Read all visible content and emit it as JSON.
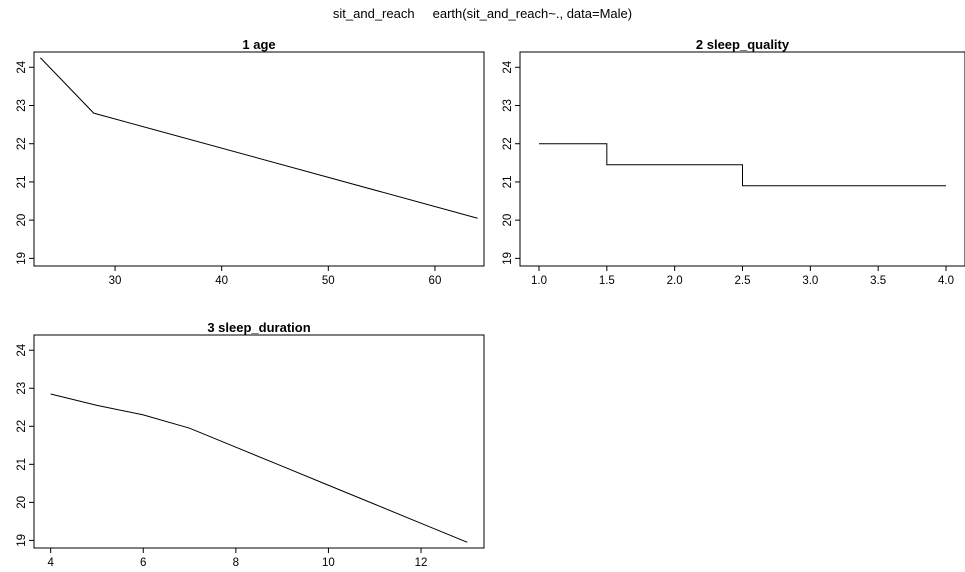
{
  "main_title": "sit_and_reach     earth(sit_and_reach~., data=Male)",
  "chart_data": [
    {
      "type": "line",
      "title": "1  age",
      "xlabel": "",
      "ylabel": "",
      "xlim": [
        22.4,
        64.6
      ],
      "ylim": [
        18.8,
        24.4
      ],
      "x_ticks": [
        30,
        40,
        50,
        60
      ],
      "x_tick_labels": [
        "30",
        "40",
        "50",
        "60"
      ],
      "y_ticks": [
        19,
        20,
        21,
        22,
        23,
        24
      ],
      "y_tick_labels": [
        "19",
        "20",
        "21",
        "22",
        "23",
        "24"
      ],
      "grid": false,
      "series": [
        {
          "x": [
            23,
            28,
            64
          ],
          "y": [
            24.25,
            22.8,
            20.05
          ]
        }
      ]
    },
    {
      "type": "line",
      "title": "2  sleep_quality",
      "xlabel": "",
      "ylabel": "",
      "xlim": [
        0.86,
        4.14
      ],
      "ylim": [
        18.8,
        24.4
      ],
      "x_ticks": [
        1.0,
        1.5,
        2.0,
        2.5,
        3.0,
        3.5,
        4.0
      ],
      "x_tick_labels": [
        "1.0",
        "1.5",
        "2.0",
        "2.5",
        "3.0",
        "3.5",
        "4.0"
      ],
      "y_ticks": [
        19,
        20,
        21,
        22,
        23,
        24
      ],
      "y_tick_labels": [
        "19",
        "20",
        "21",
        "22",
        "23",
        "24"
      ],
      "grid": false,
      "series": [
        {
          "x": [
            1.0,
            1.5,
            1.5,
            2.5,
            2.5,
            4.0
          ],
          "y": [
            22.0,
            22.0,
            21.45,
            21.45,
            20.9,
            20.9
          ]
        }
      ]
    },
    {
      "type": "line",
      "title": "3  sleep_duration",
      "xlabel": "",
      "ylabel": "",
      "xlim": [
        3.64,
        13.36
      ],
      "ylim": [
        18.8,
        24.4
      ],
      "x_ticks": [
        4,
        6,
        8,
        10,
        12
      ],
      "x_tick_labels": [
        "4",
        "6",
        "8",
        "10",
        "12"
      ],
      "y_ticks": [
        19,
        20,
        21,
        22,
        23,
        24
      ],
      "y_tick_labels": [
        "19",
        "20",
        "21",
        "22",
        "23",
        "24"
      ],
      "grid": false,
      "series": [
        {
          "x": [
            4,
            5,
            6,
            7,
            8,
            9,
            10,
            11,
            12,
            13
          ],
          "y": [
            22.85,
            22.55,
            22.3,
            21.95,
            21.45,
            20.95,
            20.45,
            19.95,
            19.45,
            18.95
          ]
        }
      ]
    }
  ]
}
